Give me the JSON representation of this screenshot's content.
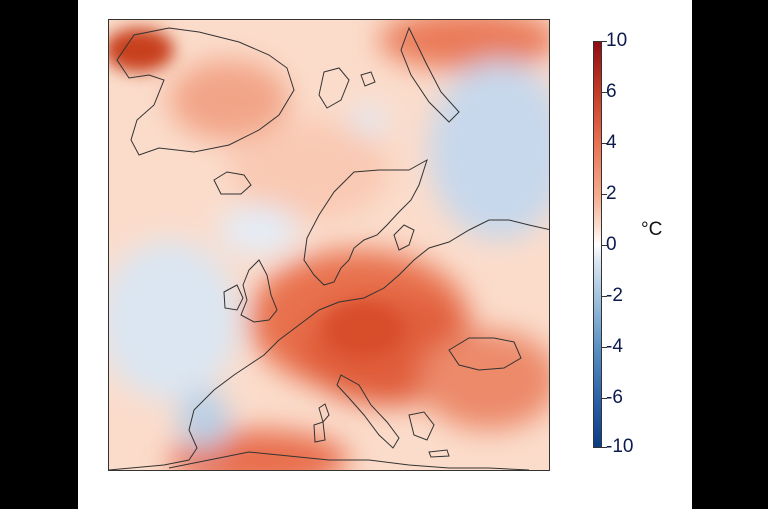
{
  "colorbar": {
    "unit": "°C",
    "ticks": [
      "10",
      "6",
      "4",
      "2",
      "0",
      "-2",
      "-4",
      "-6",
      "-10"
    ],
    "colors": [
      "#8e0d11",
      "#c33a26",
      "#e97153",
      "#f5ad8f",
      "#ffffff",
      "#a8c7e1",
      "#5b93c6",
      "#2c62a8",
      "#0b3c86"
    ]
  }
}
